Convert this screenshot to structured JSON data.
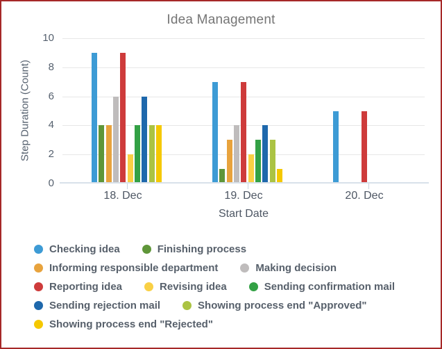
{
  "frame": {
    "border_color": "#A62828",
    "background": "#FFFFFF"
  },
  "text_colors": {
    "title": "#757575",
    "axis": "#55606E",
    "legend": "#57606B"
  },
  "chart_data": {
    "type": "bar",
    "title": "Idea Management",
    "xlabel": "Start Date",
    "ylabel": "Step Duration (Count)",
    "categories": [
      "18. Dec",
      "19. Dec",
      "20. Dec"
    ],
    "y_ticks": [
      0,
      2,
      4,
      6,
      8,
      10
    ],
    "ylim": [
      0,
      10
    ],
    "grid": true,
    "legend_position": "bottom-left",
    "series": [
      {
        "name": "Checking idea",
        "color": "#3D9BD5",
        "values": [
          9,
          7,
          5
        ]
      },
      {
        "name": "Finishing process",
        "color": "#5F9639",
        "values": [
          4,
          1,
          0
        ]
      },
      {
        "name": "Informing responsible department",
        "color": "#E8A33D",
        "values": [
          4,
          3,
          0
        ]
      },
      {
        "name": "Making decision",
        "color": "#BFBCBC",
        "values": [
          6,
          4,
          0
        ]
      },
      {
        "name": "Reporting idea",
        "color": "#CE3B3B",
        "values": [
          9,
          7,
          5
        ]
      },
      {
        "name": "Revising idea",
        "color": "#F9D045",
        "values": [
          2,
          2,
          0
        ]
      },
      {
        "name": "Sending confirmation mail",
        "color": "#33A145",
        "values": [
          4,
          3,
          0
        ]
      },
      {
        "name": "Sending rejection mail",
        "color": "#1E68AC",
        "values": [
          6,
          4,
          0
        ]
      },
      {
        "name": "Showing process end \"Approved\"",
        "color": "#ABC343",
        "values": [
          4,
          3,
          0
        ]
      },
      {
        "name": "Showing process end \"Rejected\"",
        "color": "#F5C800",
        "values": [
          4,
          1,
          0
        ]
      }
    ],
    "legend_rows": [
      [
        0,
        1
      ],
      [
        2,
        3
      ],
      [
        4,
        5,
        6
      ],
      [
        7,
        8
      ],
      [
        9
      ]
    ]
  }
}
